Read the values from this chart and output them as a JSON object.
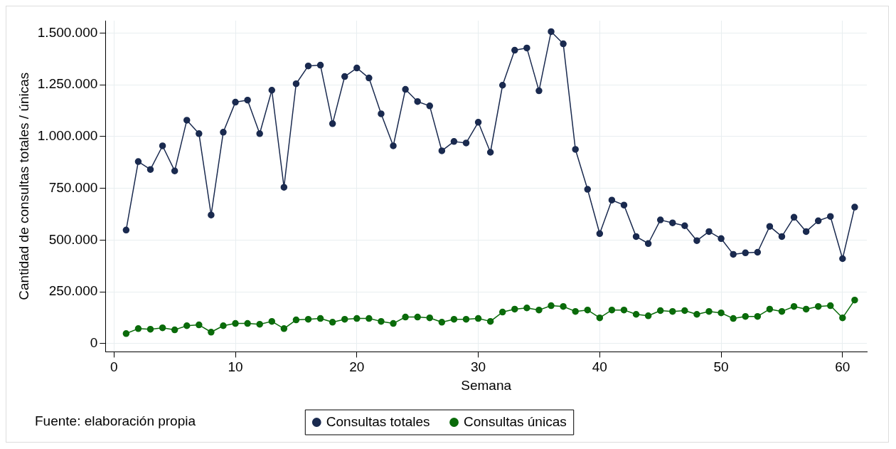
{
  "chart_data": {
    "type": "line",
    "xlabel": "Semana",
    "ylabel": "Cantidad de consultas totales / únicas",
    "x": [
      1,
      2,
      3,
      4,
      5,
      6,
      7,
      8,
      9,
      10,
      11,
      12,
      13,
      14,
      15,
      16,
      17,
      18,
      19,
      20,
      21,
      22,
      23,
      24,
      25,
      26,
      27,
      28,
      29,
      30,
      31,
      32,
      33,
      34,
      35,
      36,
      37,
      38,
      39,
      40,
      41,
      42,
      43,
      44,
      45,
      46,
      47,
      48,
      49,
      50,
      51,
      52,
      53,
      54,
      55,
      56,
      57,
      58,
      59,
      60,
      61
    ],
    "series": [
      {
        "name": "Consultas totales",
        "color": "#1a2a4f",
        "values": [
          548000,
          879000,
          841000,
          955000,
          834000,
          1079000,
          1014000,
          621000,
          1021000,
          1166000,
          1176000,
          1014000,
          1224000,
          755000,
          1255000,
          1341000,
          1345000,
          1062000,
          1290000,
          1331000,
          1283000,
          1110000,
          955000,
          1228000,
          1169000,
          1148000,
          931000,
          976000,
          969000,
          1069000,
          924000,
          1248000,
          1417000,
          1428000,
          1221000,
          1507000,
          1448000,
          938000,
          745000,
          531000,
          693000,
          669000,
          517000,
          483000,
          597000,
          583000,
          569000,
          497000,
          541000,
          507000,
          431000,
          438000,
          441000,
          566000,
          517000,
          610000,
          541000,
          593000,
          614000,
          410000,
          659000
        ]
      },
      {
        "name": "Consultas únicas",
        "color": "#0a6b0a",
        "values": [
          48000,
          72000,
          69000,
          76000,
          66000,
          86000,
          90000,
          55000,
          86000,
          97000,
          97000,
          93000,
          107000,
          72000,
          114000,
          117000,
          121000,
          103000,
          117000,
          121000,
          121000,
          107000,
          97000,
          128000,
          128000,
          124000,
          103000,
          117000,
          117000,
          121000,
          107000,
          152000,
          166000,
          172000,
          162000,
          183000,
          179000,
          155000,
          162000,
          124000,
          162000,
          162000,
          141000,
          134000,
          159000,
          155000,
          159000,
          141000,
          155000,
          148000,
          121000,
          131000,
          131000,
          166000,
          155000,
          179000,
          166000,
          179000,
          183000,
          124000,
          210000
        ]
      }
    ],
    "xlim": [
      -0.7,
      62
    ],
    "xticks": [
      0,
      10,
      20,
      30,
      40,
      50,
      60
    ],
    "ylim": [
      -40000,
      1560000
    ],
    "yticks": [
      {
        "value": 0,
        "label": "0"
      },
      {
        "value": 250000,
        "label": "250.000"
      },
      {
        "value": 500000,
        "label": "500.000"
      },
      {
        "value": 750000,
        "label": "750.000"
      },
      {
        "value": 1000000,
        "label": "1.000.000"
      },
      {
        "value": 1250000,
        "label": "1.250.000"
      },
      {
        "value": 1500000,
        "label": "1.500.000"
      }
    ],
    "grid": true,
    "legend": "bottom",
    "marker": "circle",
    "line_style": "solid",
    "annotations": [
      "Fuente: elaboración propia"
    ]
  }
}
